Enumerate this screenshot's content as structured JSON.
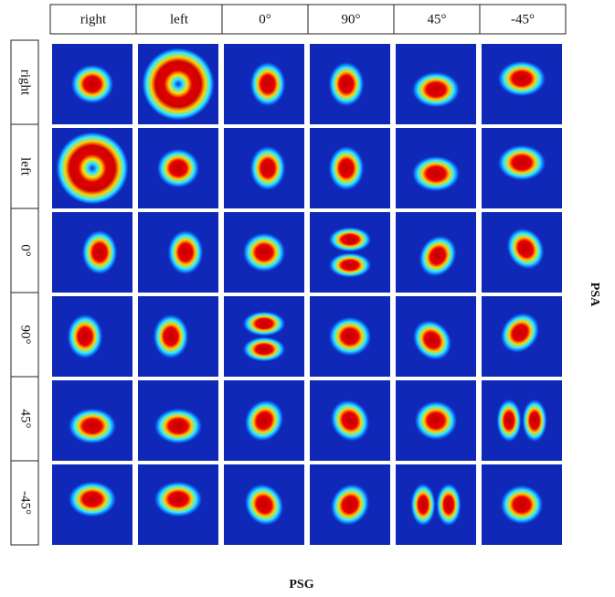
{
  "columns": [
    "right",
    "left",
    "0°",
    "90°",
    "45°",
    "-45°"
  ],
  "rows": [
    "right",
    "left",
    "0°",
    "90°",
    "45°",
    "-45°"
  ],
  "y_label": "PSA",
  "x_label": "PSG"
}
